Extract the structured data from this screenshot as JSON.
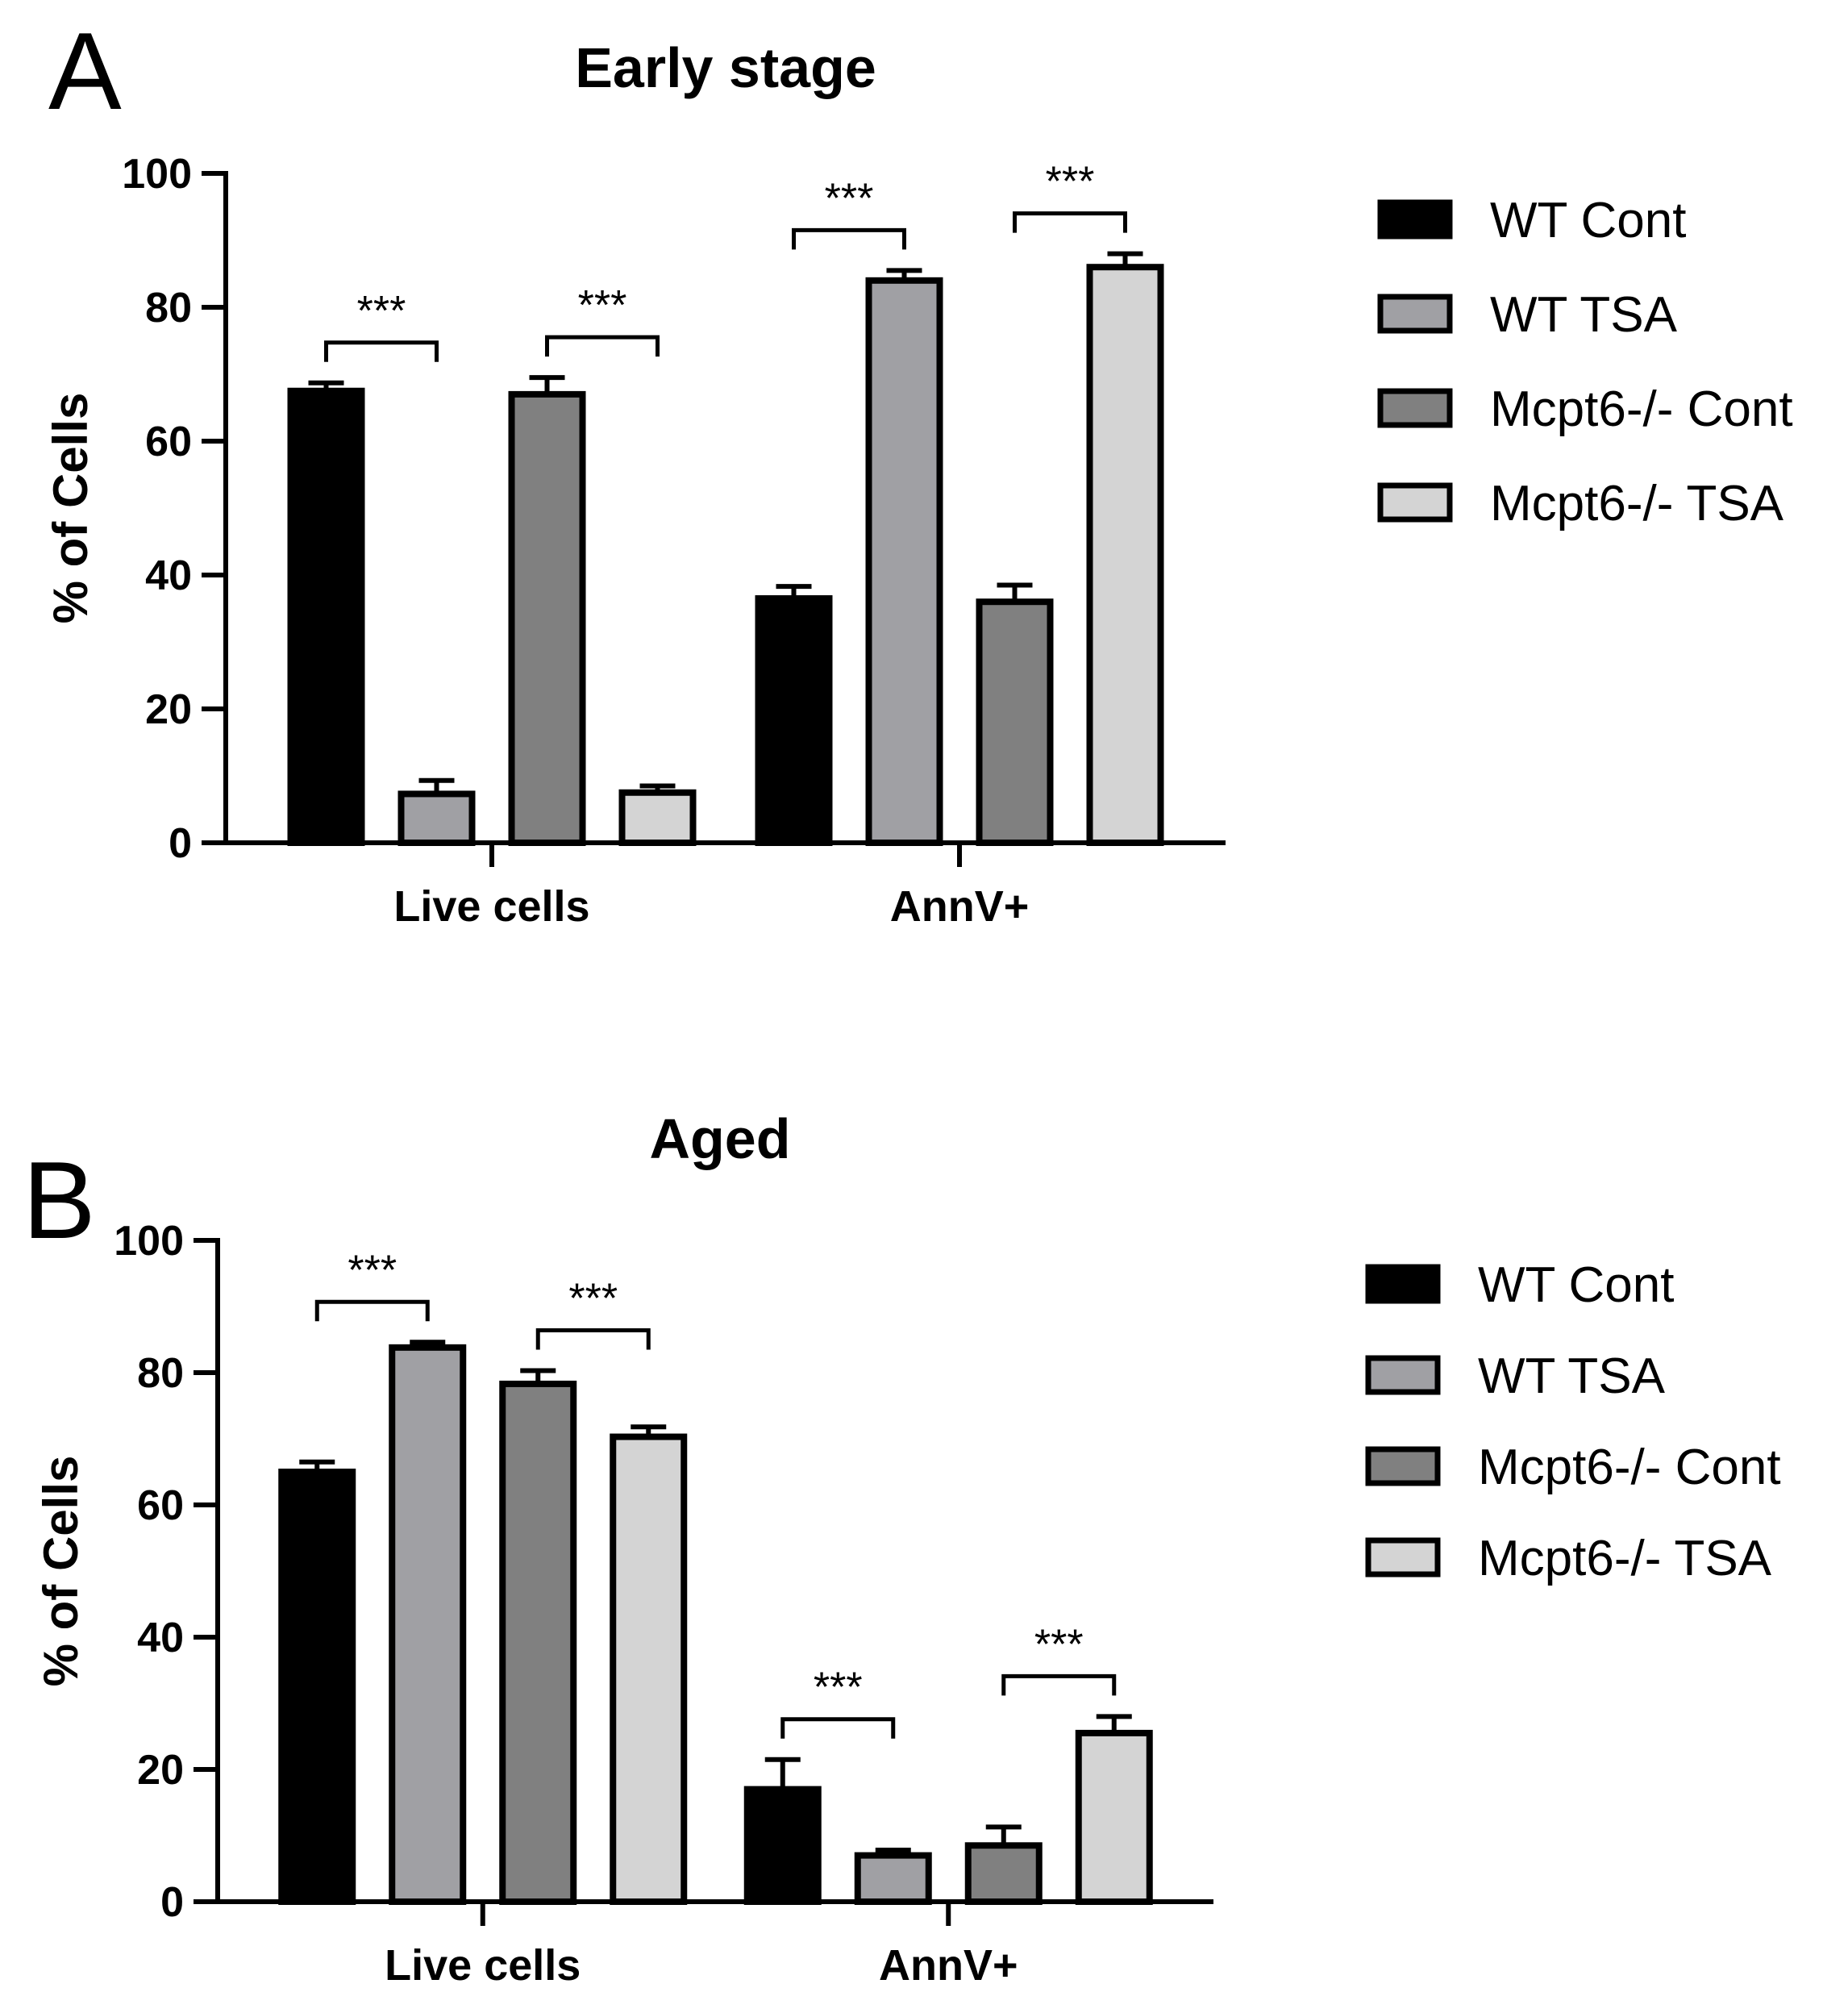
{
  "chart_data": [
    {
      "panel_label": "A",
      "type": "bar",
      "title": "Early stage",
      "ylabel": "% of Cells",
      "ylim": [
        0,
        100
      ],
      "yticks": [
        "0",
        "20",
        "40",
        "60",
        "80",
        "100"
      ],
      "categories": [
        "Live cells",
        "AnnV+"
      ],
      "legend_position": "right",
      "series": [
        {
          "name": "WT Cont",
          "color": "#000000",
          "values": [
            67.5,
            36.5
          ],
          "errors": [
            1.2,
            1.8
          ]
        },
        {
          "name": "WT TSA",
          "color": "#a0a0a4",
          "values": [
            7.3,
            84.0
          ],
          "errors": [
            2.0,
            1.5
          ]
        },
        {
          "name": "Mcpt6-/- Cont",
          "color": "#808080",
          "values": [
            67.0,
            36.0
          ],
          "errors": [
            2.5,
            2.5
          ]
        },
        {
          "name": "Mcpt6-/- TSA",
          "color": "#d4d4d4",
          "values": [
            7.5,
            86.0
          ],
          "errors": [
            1.0,
            2.0
          ]
        }
      ],
      "annotations": [
        {
          "text": "***",
          "category": 0,
          "from_series": 0,
          "to_series": 1
        },
        {
          "text": "***",
          "category": 0,
          "from_series": 2,
          "to_series": 3
        },
        {
          "text": "***",
          "category": 1,
          "from_series": 0,
          "to_series": 1
        },
        {
          "text": "***",
          "category": 1,
          "from_series": 2,
          "to_series": 3
        }
      ]
    },
    {
      "panel_label": "B",
      "type": "bar",
      "title": "Aged",
      "ylabel": "% of Cells",
      "ylim": [
        0,
        100
      ],
      "yticks": [
        "0",
        "20",
        "40",
        "60",
        "80",
        "100"
      ],
      "categories": [
        "Live cells",
        "AnnV+"
      ],
      "legend_position": "right",
      "series": [
        {
          "name": "WT Cont",
          "color": "#000000",
          "values": [
            65.0,
            17.0
          ],
          "errors": [
            1.5,
            4.5
          ]
        },
        {
          "name": "WT TSA",
          "color": "#a0a0a4",
          "values": [
            83.8,
            7.0
          ],
          "errors": [
            0.8,
            0.8
          ]
        },
        {
          "name": "Mcpt6-/-  Cont",
          "color": "#808080",
          "values": [
            78.3,
            8.5
          ],
          "errors": [
            2.0,
            2.8
          ]
        },
        {
          "name": "Mcpt6-/-  TSA",
          "color": "#d4d4d4",
          "values": [
            70.3,
            25.5
          ],
          "errors": [
            1.5,
            2.5
          ]
        }
      ],
      "annotations": [
        {
          "text": "***",
          "category": 0,
          "from_series": 0,
          "to_series": 1
        },
        {
          "text": "***",
          "category": 0,
          "from_series": 2,
          "to_series": 3
        },
        {
          "text": "***",
          "category": 1,
          "from_series": 0,
          "to_series": 1
        },
        {
          "text": "***",
          "category": 1,
          "from_series": 2,
          "to_series": 3
        }
      ]
    }
  ]
}
